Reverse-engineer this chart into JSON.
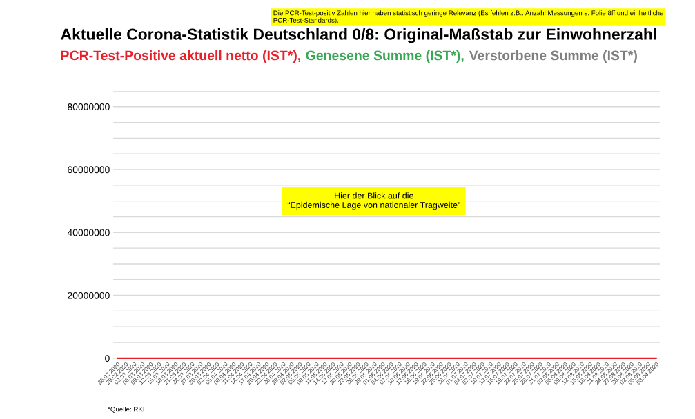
{
  "chart_data": {
    "type": "line",
    "title": "Aktuelle Corona-Statistik Deutschland 0/8: Original-Maßstab zur Einwohnerzahl",
    "categories": [
      "26.02.2020",
      "29.02.2020",
      "03.03.2020",
      "06.03.2020",
      "09.03.2020",
      "12.03.2020",
      "15.03.2020",
      "18.03.2020",
      "21.03.2020",
      "24.03.2020",
      "27.03.2020",
      "30.03.2020",
      "02.04.2020",
      "05.04.2020",
      "08.04.2020",
      "11.04.2020",
      "14.04.2020",
      "17.04.2020",
      "20.04.2020",
      "23.04.2020",
      "26.04.2020",
      "29.04.2020",
      "02.05.2020",
      "05.05.2020",
      "08.05.2020",
      "11.05.2020",
      "14.05.2020",
      "17.05.2020",
      "20.05.2020",
      "23.05.2020",
      "26.05.2020",
      "29.05.2020",
      "01.06.2020",
      "04.06.2020",
      "07.06.2020",
      "10.06.2020",
      "13.06.2020",
      "16.06.2020",
      "19.06.2020",
      "22.06.2020",
      "25.06.2020",
      "28.06.2020",
      "01.07.2020",
      "04.07.2020",
      "07.07.2020",
      "10.07.2020",
      "13.07.2020",
      "16.07.2020",
      "19.07.2020",
      "22.07.2020",
      "25.07.2020",
      "28.07.2020",
      "31.07.2020",
      "03.08.2020",
      "06.08.2020",
      "09.08.2020",
      "12.08.2020",
      "15.08.2020",
      "18.08.2020",
      "21.08.2020",
      "24.08.2020",
      "27.08.2020",
      "30.08.2020",
      "02.09.2020",
      "05.09.2020",
      "08.09.2020"
    ],
    "series": [
      {
        "name": "Verstorbene Summe (IST*)",
        "color": "#7f7f7f",
        "values": [
          null,
          null,
          null,
          null,
          null,
          null,
          null,
          null,
          null,
          null,
          null,
          null,
          null,
          null,
          null,
          null,
          null,
          null,
          null,
          null,
          null,
          null,
          null,
          null,
          null,
          null,
          null,
          null,
          null,
          null,
          null,
          null,
          null,
          null,
          null,
          null,
          null,
          null,
          null,
          null,
          null,
          null,
          null,
          null,
          null,
          null,
          null,
          null,
          null,
          null,
          null,
          null,
          null,
          null,
          null,
          null,
          null,
          null,
          null,
          null,
          null,
          null,
          null,
          null,
          null,
          null
        ]
      },
      {
        "name": "Genesene Summe (IST*),",
        "color": "#3aa757",
        "values": [
          null,
          null,
          null,
          null,
          null,
          null,
          null,
          null,
          null,
          null,
          null,
          null,
          null,
          null,
          null,
          null,
          null,
          null,
          null,
          null,
          null,
          null,
          null,
          null,
          null,
          null,
          null,
          null,
          null,
          null,
          null,
          null,
          null,
          null,
          null,
          null,
          null,
          null,
          null,
          null,
          null,
          null,
          null,
          null,
          null,
          null,
          null,
          null,
          null,
          null,
          null,
          null,
          null,
          null,
          null,
          null,
          null,
          null,
          null,
          null,
          null,
          null,
          null,
          null,
          null,
          null
        ]
      },
      {
        "name": "PCR-Test-Positive aktuell netto (IST*),",
        "color": "#e8202a",
        "values": [
          0,
          0,
          0,
          0,
          0,
          0,
          0,
          0,
          0,
          0,
          0,
          0,
          0,
          0,
          0,
          0,
          0,
          0,
          0,
          0,
          0,
          0,
          0,
          0,
          0,
          0,
          0,
          0,
          0,
          0,
          0,
          0,
          0,
          0,
          0,
          0,
          0,
          0,
          0,
          0,
          0,
          0,
          0,
          0,
          0,
          0,
          0,
          0,
          0,
          0,
          0,
          0,
          0,
          0,
          0,
          0,
          0,
          0,
          0,
          0,
          0,
          0,
          0,
          0,
          0,
          0
        ]
      }
    ],
    "ylim": [
      0,
      85000000
    ],
    "yticks": [
      0,
      {
        "value": 5000000,
        "label": null
      },
      {
        "value": 10000000,
        "label": null
      },
      {
        "value": 15000000,
        "label": null
      },
      20000000,
      {
        "value": 25000000,
        "label": null
      },
      {
        "value": 30000000,
        "label": null
      },
      {
        "value": 35000000,
        "label": null
      },
      40000000,
      {
        "value": 45000000,
        "label": null
      },
      {
        "value": 50000000,
        "label": null
      },
      {
        "value": 55000000,
        "label": null
      },
      60000000,
      {
        "value": 65000000,
        "label": null
      },
      {
        "value": 70000000,
        "label": null
      },
      {
        "value": 75000000,
        "label": null
      },
      80000000,
      {
        "value": 85000000,
        "label": null
      }
    ],
    "grid": "y",
    "marker": "none",
    "line_style": "solid",
    "legend": "top",
    "annotations": [
      "Die PCR-Test-positiv Zahlen hier haben statistisch geringe Relevanz (Es fehlen z.B.: Anzahl Messungen s. Folie 8ff und einheitliche PCR-Test-Standards).",
      "Hier der Blick auf die\n“Epidemische Lage von nationaler Tragweite”",
      "*Quelle: RKI"
    ]
  }
}
